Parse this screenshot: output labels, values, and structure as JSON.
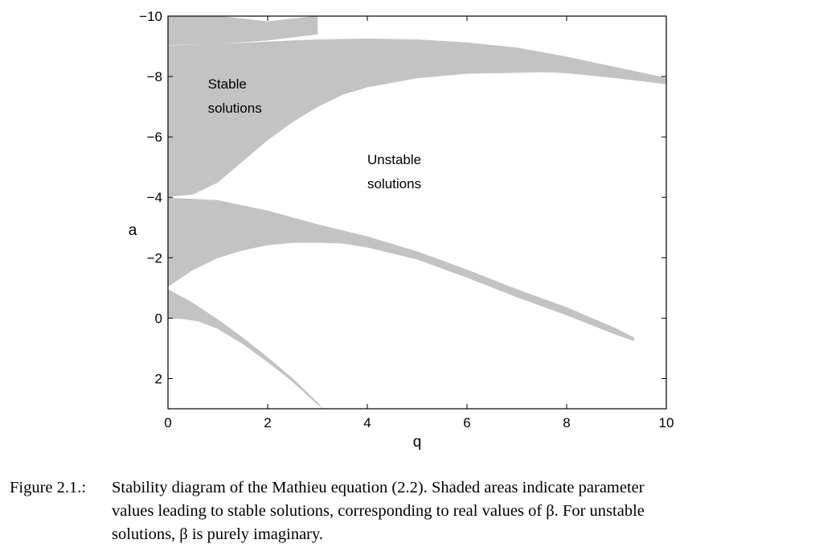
{
  "chart_data": {
    "type": "area",
    "xlabel": "q",
    "ylabel": "a",
    "xlim": [
      0,
      10
    ],
    "ylim": [
      -10,
      3
    ],
    "y_axis_reversed": true,
    "x_ticks": [
      "0",
      "2",
      "4",
      "6",
      "8",
      "10"
    ],
    "y_ticks": [
      "−10",
      "−8",
      "−6",
      "−4",
      "−2",
      "0",
      "2"
    ],
    "x_tick_values": [
      0,
      2,
      4,
      6,
      8,
      10
    ],
    "y_tick_values": [
      -10,
      -8,
      -6,
      -4,
      -2,
      0,
      2
    ],
    "fill_color": "#c3c3c3",
    "regions": [
      {
        "upper": [
          [
            0,
            -10
          ],
          [
            1,
            -10
          ],
          [
            2,
            -9.82
          ],
          [
            3,
            -10
          ]
        ],
        "lower": [
          [
            0,
            -9.05
          ],
          [
            1,
            -9.08
          ],
          [
            2,
            -9.2
          ],
          [
            3,
            -9.4
          ]
        ]
      },
      {
        "upper": [
          [
            0,
            -9.02
          ],
          [
            1,
            -9.07
          ],
          [
            2,
            -9.15
          ],
          [
            3,
            -9.22
          ],
          [
            4,
            -9.25
          ],
          [
            5,
            -9.22
          ],
          [
            6,
            -9.12
          ],
          [
            7,
            -8.95
          ],
          [
            8,
            -8.65
          ],
          [
            9,
            -8.3
          ],
          [
            10,
            -7.95
          ]
        ],
        "lower": [
          [
            0,
            -4.02
          ],
          [
            0.5,
            -4.1
          ],
          [
            1,
            -4.5
          ],
          [
            1.5,
            -5.2
          ],
          [
            2,
            -5.9
          ],
          [
            2.5,
            -6.5
          ],
          [
            3,
            -7.0
          ],
          [
            3.5,
            -7.4
          ],
          [
            4,
            -7.65
          ],
          [
            5,
            -7.95
          ],
          [
            6,
            -8.1
          ],
          [
            7,
            -8.13
          ],
          [
            7.5,
            -8.15
          ],
          [
            8,
            -8.12
          ],
          [
            9,
            -7.95
          ],
          [
            10,
            -7.75
          ]
        ]
      },
      {
        "upper": [
          [
            0,
            -3.98
          ],
          [
            1,
            -3.9
          ],
          [
            2,
            -3.55
          ],
          [
            3,
            -3.1
          ],
          [
            4,
            -2.7
          ],
          [
            5,
            -2.2
          ],
          [
            6,
            -1.6
          ],
          [
            7,
            -0.95
          ],
          [
            8,
            -0.35
          ],
          [
            9,
            0.35
          ],
          [
            9.35,
            0.65
          ]
        ],
        "lower": [
          [
            0,
            -1.05
          ],
          [
            0.5,
            -1.6
          ],
          [
            1,
            -2.0
          ],
          [
            1.5,
            -2.25
          ],
          [
            2,
            -2.42
          ],
          [
            2.5,
            -2.5
          ],
          [
            3,
            -2.51
          ],
          [
            3.5,
            -2.48
          ],
          [
            4,
            -2.35
          ],
          [
            5,
            -1.95
          ],
          [
            6,
            -1.35
          ],
          [
            7,
            -0.7
          ],
          [
            8,
            -0.1
          ],
          [
            9,
            0.55
          ],
          [
            9.35,
            0.75
          ]
        ]
      },
      {
        "upper": [
          [
            0,
            -0.95
          ],
          [
            0.5,
            -0.5
          ],
          [
            1,
            0.05
          ],
          [
            1.5,
            0.65
          ],
          [
            2,
            1.3
          ],
          [
            2.5,
            2.0
          ],
          [
            3,
            2.8
          ],
          [
            3.1,
            3.0
          ]
        ],
        "lower": [
          [
            0,
            0
          ],
          [
            0.3,
            0.02
          ],
          [
            0.6,
            0.1
          ],
          [
            1,
            0.35
          ],
          [
            1.5,
            0.85
          ],
          [
            2,
            1.45
          ],
          [
            2.5,
            2.1
          ],
          [
            3,
            2.85
          ],
          [
            3.12,
            3.0
          ]
        ]
      }
    ],
    "annotations": [
      {
        "lines": [
          "Stable",
          "solutions"
        ],
        "at": [
          0.8,
          -7.6
        ]
      },
      {
        "lines": [
          "Unstable",
          "solutions"
        ],
        "at": [
          4.0,
          -5.1
        ]
      }
    ]
  },
  "caption": {
    "label": "Figure 2.1.:",
    "line1": "Stability diagram of the Mathieu equation (2.2). Shaded areas indicate parameter",
    "line2": "values leading to stable solutions, corresponding to real values of β. For unstable",
    "line3": "solutions, β is purely imaginary."
  }
}
